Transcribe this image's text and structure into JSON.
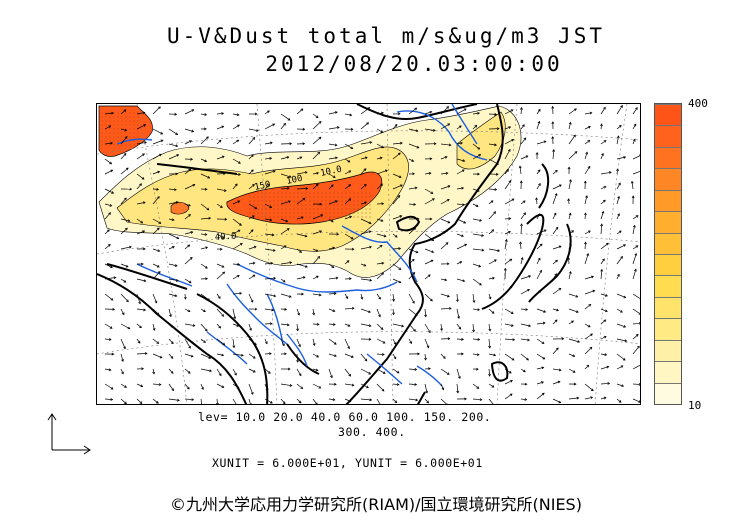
{
  "header": {
    "title": "U-V&Dust total m/s&ug/m3 JST",
    "datetime": "2012/08/20.03:00:00"
  },
  "colorbar": {
    "max_label": "400",
    "min_label": "10",
    "colors": [
      "#fffbe0",
      "#fff6c4",
      "#fff0a8",
      "#ffea84",
      "#ffe36a",
      "#ffdc50",
      "#ffcf40",
      "#ffbf36",
      "#ffae2e",
      "#ff9a28",
      "#ff8624",
      "#ff7220",
      "#ff621c",
      "#ff5418"
    ]
  },
  "map": {
    "contour_labels": [
      "150",
      "100",
      "40.0",
      "10.0"
    ],
    "colors": {
      "coast": "#000000",
      "river": "#1a5fe0",
      "dust_high": "#ff5a1a",
      "dust_mid": "#ffd04a",
      "dust_low": "#fff3b0"
    }
  },
  "legend": {
    "levels_line1": "lev= 10.0 20.0 40.0 60.0 100. 150. 200.",
    "levels_line2": "300. 400.",
    "units": "XUNIT = 6.000E+01, YUNIT = 6.000E+01"
  },
  "footer": {
    "credit": "©九州大学応用力学研究所(RIAM)/国立環境研究所(NIES)"
  }
}
